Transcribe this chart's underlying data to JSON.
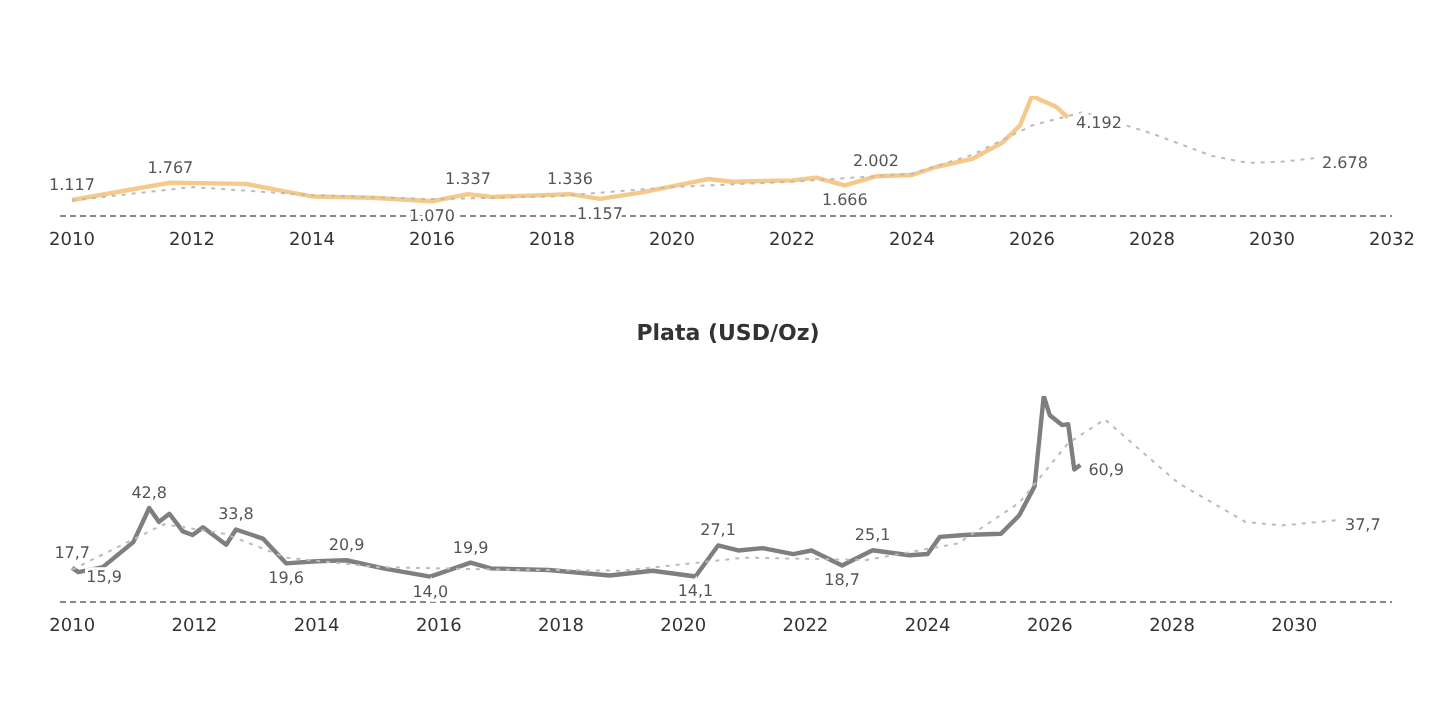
{
  "chart_data": [
    {
      "type": "line",
      "xlim": [
        2009.8,
        2032
      ],
      "xticks": [
        2010,
        2012,
        2014,
        2016,
        2018,
        2020,
        2022,
        2024,
        2026,
        2028,
        2030,
        2032
      ],
      "tick_labels": "x",
      "marker": "none",
      "series": [
        {
          "color": "#f5c98a",
          "line_style": "solid",
          "x": [
            2010.0,
            2011.64,
            2012.9,
            2013.5,
            2014.0,
            2015.0,
            2016.0,
            2016.6,
            2017.0,
            2018.3,
            2018.8,
            2019.5,
            2020.6,
            2021.0,
            2022.0,
            2022.4,
            2022.88,
            2023.4,
            2024.0,
            2024.4,
            2025.0,
            2025.5,
            2025.8,
            2026.0,
            2026.4,
            2026.6
          ],
          "values": [
            1117,
            1767,
            1720,
            1460,
            1250,
            1200,
            1070,
            1337,
            1230,
            1336,
            1157,
            1400,
            1900,
            1800,
            1850,
            1950,
            1666,
            2002,
            2050,
            2350,
            2650,
            3250,
            3900,
            5000,
            4600,
            4192
          ],
          "value_labels": [
            "1.117",
            "1.767",
            null,
            null,
            null,
            null,
            "1.070",
            "1.337",
            null,
            "1.336",
            "1.157",
            null,
            null,
            null,
            null,
            null,
            "1.666",
            "2.002",
            null,
            null,
            null,
            null,
            null,
            null,
            null,
            "4.192"
          ]
        },
        {
          "color": "#bbbbbb",
          "line_style": "dotted",
          "x": [
            2010,
            2012,
            2014,
            2016,
            2018,
            2020,
            2022,
            2024,
            2025,
            2026,
            2026.85,
            2028,
            2029,
            2029.6,
            2030.2,
            2030.7
          ],
          "values": [
            1100,
            1600,
            1300,
            1150,
            1250,
            1600,
            1800,
            2100,
            2800,
            3900,
            4400,
            3600,
            2760,
            2500,
            2550,
            2678
          ],
          "value_labels": [
            null,
            null,
            null,
            null,
            null,
            null,
            null,
            null,
            null,
            null,
            null,
            null,
            null,
            null,
            null,
            "2.678"
          ]
        }
      ]
    },
    {
      "type": "line",
      "title": "Plata (USD/Oz)",
      "xlim": [
        2009.8,
        2031.6
      ],
      "xticks": [
        2010,
        2012,
        2014,
        2016,
        2018,
        2020,
        2022,
        2024,
        2026,
        2028,
        2030
      ],
      "tick_labels": "x",
      "marker": "none",
      "series": [
        {
          "color": "#7f7f7f",
          "line_style": "solid",
          "x": [
            2010.0,
            2010.1,
            2010.5,
            2011.0,
            2011.26,
            2011.42,
            2011.59,
            2011.81,
            2011.97,
            2012.14,
            2012.52,
            2012.68,
            2013.12,
            2013.5,
            2014.0,
            2014.49,
            2015.09,
            2015.86,
            2016.52,
            2016.85,
            2017.8,
            2018.8,
            2019.5,
            2020.2,
            2020.57,
            2020.9,
            2021.3,
            2021.8,
            2022.1,
            2022.6,
            2023.1,
            2023.7,
            2024.0,
            2024.2,
            2024.6,
            2025.2,
            2025.5,
            2025.75,
            2025.9,
            2026.0,
            2026.2,
            2026.3,
            2026.4,
            2026.5
          ],
          "values": [
            17.7,
            15.9,
            18,
            28.5,
            42.8,
            37,
            40.4,
            33,
            31.5,
            34.7,
            27.4,
            33.8,
            30,
            19.6,
            20.5,
            20.9,
            17.5,
            14.0,
            19.9,
            17.5,
            16.8,
            14.5,
            16.5,
            14.1,
            27.1,
            25,
            26,
            23.5,
            25,
            18.7,
            25.1,
            23,
            23.5,
            30.7,
            31.5,
            32,
            39.8,
            51.9,
            89.8,
            81.7,
            77.6,
            78,
            59,
            60.9
          ],
          "value_labels": [
            "17,7",
            "15,9",
            null,
            null,
            "42,8",
            null,
            null,
            null,
            null,
            null,
            null,
            "33,8",
            null,
            "19,6",
            null,
            "20,9",
            null,
            "14,0",
            "19,9",
            null,
            null,
            null,
            null,
            "14,1",
            "27,1",
            null,
            null,
            null,
            null,
            "18,7",
            "25,1",
            null,
            null,
            null,
            null,
            null,
            null,
            null,
            null,
            null,
            null,
            null,
            null,
            "60,9"
          ]
        },
        {
          "color": "#bbbbbb",
          "line_style": "dotted",
          "x": [
            2010,
            2011.5,
            2012.5,
            2013.5,
            2015,
            2017,
            2019,
            2021,
            2023,
            2024.5,
            2025.5,
            2026.3,
            2026.9,
            2028.1,
            2029.2,
            2029.8,
            2030.7
          ],
          "values": [
            17,
            36,
            32,
            22,
            18,
            17,
            16.5,
            22,
            21,
            28,
            45,
            70,
            80,
            53.3,
            37,
            35.5,
            37.7
          ],
          "value_labels": [
            null,
            null,
            null,
            null,
            null,
            null,
            null,
            null,
            null,
            null,
            null,
            null,
            null,
            null,
            null,
            null,
            "37,7"
          ]
        }
      ]
    }
  ]
}
